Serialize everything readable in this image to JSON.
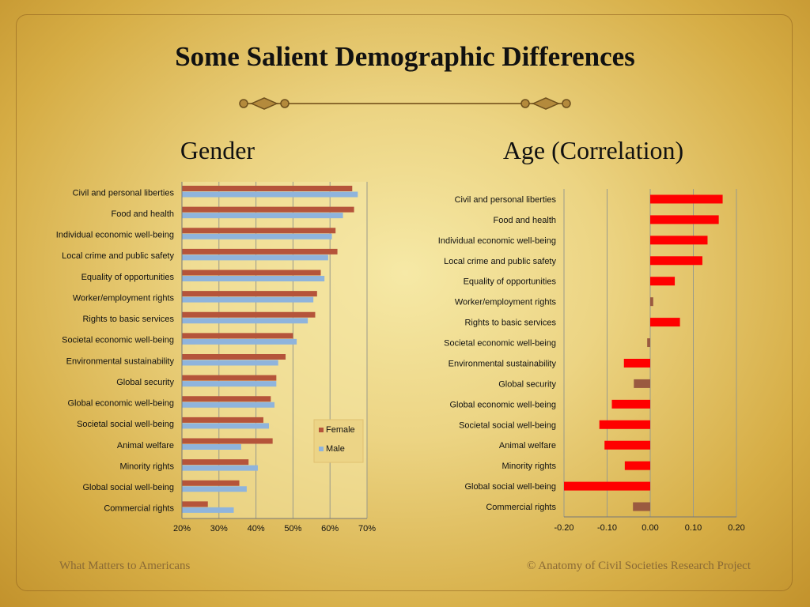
{
  "slide": {
    "title": "Some Salient Demographic Differences",
    "footer_left": "What Matters to Americans",
    "footer_right": "© Anatomy of Civil Societies Research Project"
  },
  "chart_data": [
    {
      "id": "gender",
      "type": "bar",
      "orientation": "horizontal",
      "title": "Gender",
      "categories": [
        "Civil and personal liberties",
        "Food and health",
        "Individual economic well-being",
        "Local crime and public safety",
        "Equality of opportunities",
        "Worker/employment rights",
        "Rights to basic services",
        "Societal economic well-being",
        "Environmental sustainability",
        "Global security",
        "Global economic well-being",
        "Societal social well-being",
        "Animal welfare",
        "Minority rights",
        "Global social well-being",
        "Commercial rights"
      ],
      "series": [
        {
          "name": "Female",
          "color": "#b5543a",
          "values": [
            0.66,
            0.665,
            0.615,
            0.62,
            0.575,
            0.565,
            0.56,
            0.5,
            0.48,
            0.455,
            0.44,
            0.42,
            0.445,
            0.38,
            0.355,
            0.27
          ]
        },
        {
          "name": "Male",
          "color": "#8fb4dc",
          "values": [
            0.675,
            0.635,
            0.605,
            0.595,
            0.585,
            0.555,
            0.54,
            0.51,
            0.46,
            0.455,
            0.45,
            0.435,
            0.36,
            0.405,
            0.375,
            0.34
          ]
        }
      ],
      "xlim": [
        0.2,
        0.7
      ],
      "xticks": [
        "20%",
        "30%",
        "40%",
        "50%",
        "60%",
        "70%"
      ],
      "grid": true,
      "legend": "right"
    },
    {
      "id": "age",
      "type": "bar",
      "orientation": "horizontal",
      "title": "Age (Correlation)",
      "categories": [
        "Civil and personal liberties",
        "Food and health",
        "Individual economic well-being",
        "Local crime and public safety",
        "Equality of opportunities",
        "Worker/employment rights",
        "Rights to basic services",
        "Societal economic well-being",
        "Environmental sustainability",
        "Global security",
        "Global economic well-being",
        "Societal social well-being",
        "Animal welfare",
        "Minority rights",
        "Global social well-being",
        "Commercial rights"
      ],
      "values": [
        0.168,
        0.159,
        0.133,
        0.121,
        0.057,
        0.007,
        0.069,
        -0.007,
        -0.061,
        -0.038,
        -0.089,
        -0.118,
        -0.106,
        -0.059,
        -0.2,
        -0.04
      ],
      "colors": {
        "significant": "#ff0000",
        "not_significant": "#9a5a40"
      },
      "significant": [
        true,
        true,
        true,
        true,
        true,
        false,
        true,
        false,
        true,
        false,
        true,
        true,
        true,
        true,
        true,
        false
      ],
      "xlim": [
        -0.2,
        0.2
      ],
      "xticks": [
        "-0.20",
        "-0.10",
        "0.00",
        "0.10",
        "0.20"
      ],
      "grid": true
    }
  ]
}
